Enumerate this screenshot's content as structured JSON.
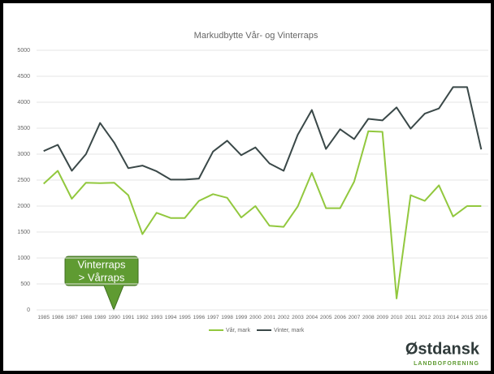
{
  "chart_data": {
    "type": "line",
    "title": "Markudbytte Vår- og Vinterraps",
    "categories": [
      "1985",
      "1986",
      "1987",
      "1988",
      "1989",
      "1990",
      "1991",
      "1992",
      "1993",
      "1994",
      "1995",
      "1996",
      "1997",
      "1998",
      "1999",
      "2000",
      "2001",
      "2002",
      "2003",
      "2004",
      "2005",
      "2006",
      "2007",
      "2008",
      "2009",
      "2010",
      "2011",
      "2012",
      "2013",
      "2014",
      "2015",
      "2016"
    ],
    "series": [
      {
        "name": "Vår, mark",
        "color": "#92c83e",
        "values": [
          2430,
          2680,
          2140,
          2450,
          2440,
          2450,
          2210,
          1460,
          1870,
          1770,
          1770,
          2100,
          2230,
          2160,
          1780,
          2000,
          1620,
          1600,
          1990,
          2640,
          1960,
          1960,
          2470,
          3440,
          3430,
          220,
          2210,
          2100,
          2400,
          1800,
          2000,
          2000
        ]
      },
      {
        "name": "Vinter, mark",
        "color": "#3a4848",
        "values": [
          3060,
          3180,
          2680,
          3000,
          3600,
          3220,
          2730,
          2780,
          2670,
          2510,
          2510,
          2530,
          3050,
          3260,
          2980,
          3130,
          2820,
          2680,
          3370,
          3850,
          3100,
          3480,
          3290,
          3680,
          3650,
          3900,
          3490,
          3780,
          3880,
          4290,
          4290,
          3090
        ]
      }
    ],
    "ylim": [
      0,
      5000
    ],
    "yticks": [
      0,
      500,
      1000,
      1500,
      2000,
      2500,
      3000,
      3500,
      4000,
      4500,
      5000
    ],
    "grid": true,
    "legend": "bottom",
    "annotation": [
      "Vinterraps",
      "> Vårraps"
    ]
  },
  "logo": {
    "name": "Østdansk",
    "tagline": "LANDBOFORENING"
  }
}
